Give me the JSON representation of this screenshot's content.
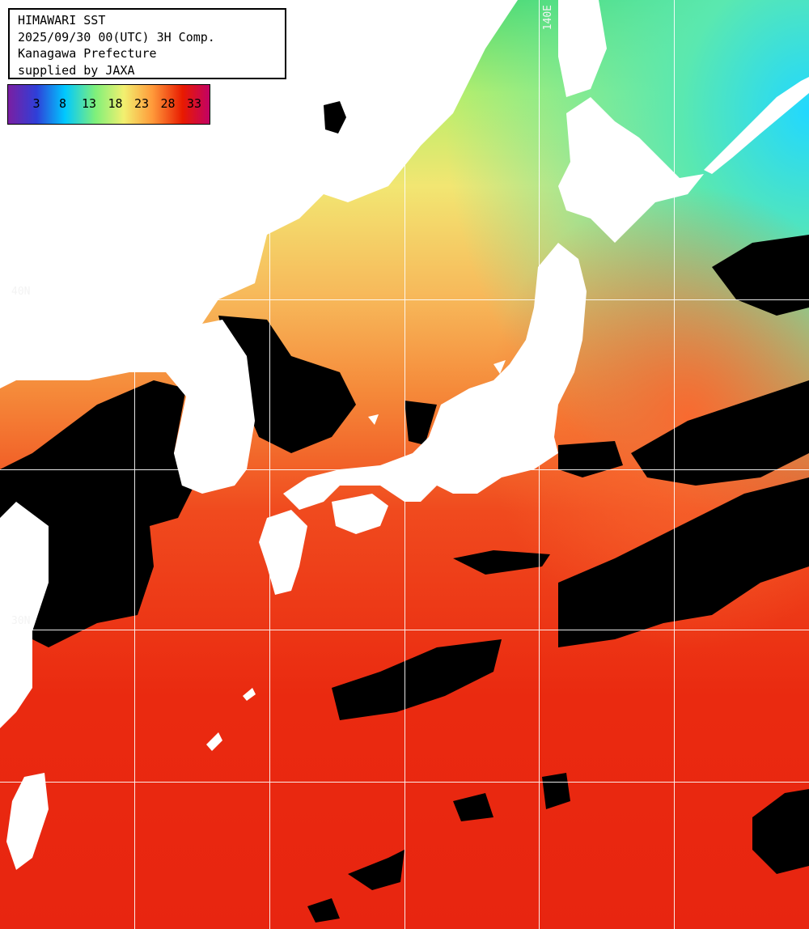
{
  "info": {
    "line1": "HIMAWARI SST",
    "line2": "2025/09/30 00(UTC) 3H Comp.",
    "line3": "Kanagawa Prefecture",
    "line4": "supplied by JAXA"
  },
  "legend": {
    "labels": [
      "3",
      "8",
      "13",
      "18",
      "23",
      "28",
      "33"
    ],
    "colors": [
      "#7a1fa2",
      "#2f3fd8",
      "#00c8ff",
      "#7ff07a",
      "#f2f070",
      "#ff8a2a",
      "#e00000",
      "#c0006a"
    ]
  },
  "coordinates": {
    "lon_label": "140E",
    "lat_label_top": "40N",
    "lat_label_bottom": "30N"
  },
  "colors": {
    "land": "#ffffff",
    "cloud": "#000000",
    "grid": "#ffffff"
  }
}
